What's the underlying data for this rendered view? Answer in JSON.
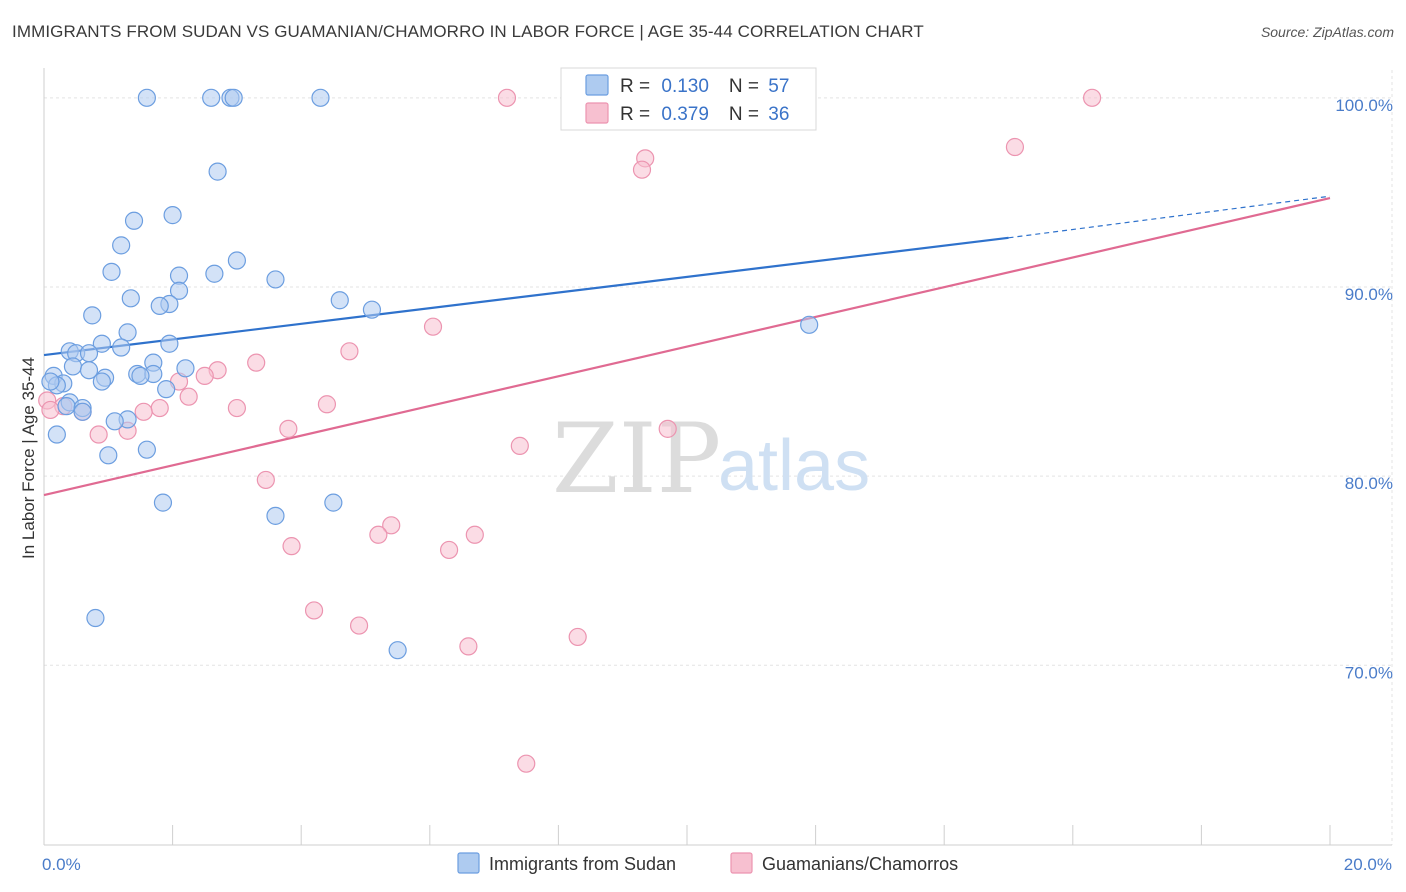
{
  "title": "IMMIGRANTS FROM SUDAN VS GUAMANIAN/CHAMORRO IN LABOR FORCE | AGE 35-44 CORRELATION CHART",
  "source": "Source: ZipAtlas.com",
  "watermark": {
    "zip": "ZIP",
    "atlas": "atlas"
  },
  "colors": {
    "blue_fill": "#aecbf0",
    "blue_stroke": "#6c9ee0",
    "blue_line": "#2f72cc",
    "pink_fill": "#f7c0d0",
    "pink_stroke": "#ec94b0",
    "pink_line": "#e06a92",
    "tick_text": "#4a7cc9",
    "grid": "#e3e3e3"
  },
  "legend": {
    "rows": [
      {
        "r_label": "R = ",
        "r_value": "0.130",
        "n_label": "N = ",
        "n_value": "57"
      },
      {
        "r_label": "R = ",
        "r_value": "0.379",
        "n_label": "N = ",
        "n_value": "36"
      }
    ]
  },
  "chart_data": {
    "type": "scatter",
    "title": "IMMIGRANTS FROM SUDAN VS GUAMANIAN/CHAMORRO IN LABOR FORCE | AGE 35-44 CORRELATION CHART",
    "xlabel": "",
    "ylabel": "In Labor Force | Age 35-44",
    "xlim": [
      0,
      20
    ],
    "ylim": [
      60.5,
      102
    ],
    "x_tick_labels": [
      {
        "value": 0,
        "label": "0.0%"
      },
      {
        "value": 20,
        "label": "20.0%"
      }
    ],
    "y_tick_labels": [
      {
        "value": 70,
        "label": "70.0%"
      },
      {
        "value": 80,
        "label": "80.0%"
      },
      {
        "value": 90,
        "label": "90.0%"
      },
      {
        "value": 100,
        "label": "100.0%"
      }
    ],
    "grid": true,
    "series": [
      {
        "name": "Immigrants from Sudan",
        "color": "blue",
        "R": 0.13,
        "N": 57,
        "trend": {
          "x0": 0,
          "y0": 86.4,
          "x1": 15.0,
          "y1": 92.6,
          "dashed_to_x": 20,
          "dashed_to_y": 94.8
        },
        "points": [
          [
            1.6,
            100
          ],
          [
            2.6,
            100
          ],
          [
            2.9,
            100
          ],
          [
            2.95,
            100
          ],
          [
            4.3,
            100
          ],
          [
            2.7,
            96.1
          ],
          [
            1.4,
            93.5
          ],
          [
            2.0,
            93.8
          ],
          [
            1.2,
            92.2
          ],
          [
            3.0,
            91.4
          ],
          [
            1.05,
            90.8
          ],
          [
            2.65,
            90.7
          ],
          [
            2.1,
            90.6
          ],
          [
            3.6,
            90.4
          ],
          [
            2.1,
            89.8
          ],
          [
            1.35,
            89.4
          ],
          [
            4.6,
            89.3
          ],
          [
            1.95,
            89.1
          ],
          [
            1.8,
            89.0
          ],
          [
            5.1,
            88.8
          ],
          [
            0.75,
            88.5
          ],
          [
            11.9,
            88.0
          ],
          [
            1.3,
            87.6
          ],
          [
            0.9,
            87.0
          ],
          [
            1.95,
            87.0
          ],
          [
            1.2,
            86.8
          ],
          [
            0.4,
            86.6
          ],
          [
            0.5,
            86.5
          ],
          [
            0.7,
            86.5
          ],
          [
            1.7,
            86.0
          ],
          [
            0.45,
            85.8
          ],
          [
            0.7,
            85.6
          ],
          [
            2.2,
            85.7
          ],
          [
            0.15,
            85.3
          ],
          [
            1.45,
            85.4
          ],
          [
            1.7,
            85.4
          ],
          [
            1.5,
            85.3
          ],
          [
            0.95,
            85.2
          ],
          [
            0.9,
            85.0
          ],
          [
            0.3,
            84.9
          ],
          [
            0.2,
            84.8
          ],
          [
            1.9,
            84.6
          ],
          [
            0.4,
            83.9
          ],
          [
            0.35,
            83.7
          ],
          [
            0.6,
            83.6
          ],
          [
            0.6,
            83.4
          ],
          [
            1.3,
            83.0
          ],
          [
            1.1,
            82.9
          ],
          [
            0.2,
            82.2
          ],
          [
            1.6,
            81.4
          ],
          [
            1.0,
            81.1
          ],
          [
            1.85,
            78.6
          ],
          [
            4.5,
            78.6
          ],
          [
            3.6,
            77.9
          ],
          [
            0.8,
            72.5
          ],
          [
            5.5,
            70.8
          ],
          [
            0.1,
            85.0
          ]
        ]
      },
      {
        "name": "Guamanians/Chamorros",
        "color": "pink",
        "R": 0.379,
        "N": 36,
        "trend": {
          "x0": 0,
          "y0": 79.0,
          "x1": 20,
          "y1": 94.7
        },
        "points": [
          [
            7.2,
            100
          ],
          [
            16.3,
            100
          ],
          [
            15.1,
            97.4
          ],
          [
            9.35,
            96.8
          ],
          [
            9.3,
            96.2
          ],
          [
            6.05,
            87.9
          ],
          [
            4.75,
            86.6
          ],
          [
            3.3,
            86.0
          ],
          [
            2.7,
            85.6
          ],
          [
            2.5,
            85.3
          ],
          [
            2.1,
            85.0
          ],
          [
            2.25,
            84.2
          ],
          [
            0.05,
            84.0
          ],
          [
            0.3,
            83.7
          ],
          [
            4.4,
            83.8
          ],
          [
            3.0,
            83.6
          ],
          [
            1.8,
            83.6
          ],
          [
            1.55,
            83.4
          ],
          [
            0.6,
            83.4
          ],
          [
            3.8,
            82.5
          ],
          [
            9.7,
            82.5
          ],
          [
            1.3,
            82.4
          ],
          [
            0.85,
            82.2
          ],
          [
            7.4,
            81.6
          ],
          [
            3.45,
            79.8
          ],
          [
            5.4,
            77.4
          ],
          [
            5.2,
            76.9
          ],
          [
            6.7,
            76.9
          ],
          [
            3.85,
            76.3
          ],
          [
            6.3,
            76.1
          ],
          [
            4.2,
            72.9
          ],
          [
            4.9,
            72.1
          ],
          [
            8.3,
            71.5
          ],
          [
            6.6,
            71.0
          ],
          [
            7.5,
            64.8
          ],
          [
            0.1,
            83.5
          ]
        ]
      }
    ]
  }
}
